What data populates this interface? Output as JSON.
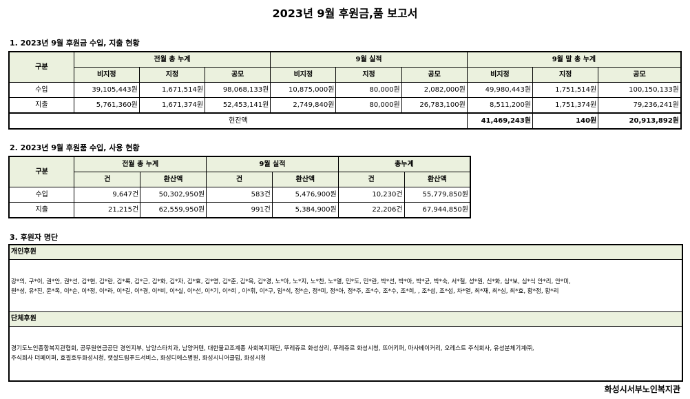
{
  "title": "2023년 9월 후원금,품 보고서",
  "section1": {
    "heading": "1. 2023년 9월 후원금 수입, 지출 현황",
    "group_label": "구분",
    "groups": [
      "전월 총 누계",
      "9월 실적",
      "9월 말 총 누계"
    ],
    "sub_headers": [
      "비지정",
      "지정",
      "공모",
      "비지정",
      "지정",
      "공모",
      "비지정",
      "지정",
      "공모"
    ],
    "rows": [
      {
        "label": "수입",
        "values": [
          "39,105,443원",
          "1,671,514원",
          "98,068,133원",
          "10,875,000원",
          "80,000원",
          "2,082,000원",
          "49,980,443원",
          "1,751,514원",
          "100,150,133원"
        ]
      },
      {
        "label": "지출",
        "values": [
          "5,761,360원",
          "1,671,374원",
          "52,453,141원",
          "2,749,840원",
          "80,000원",
          "26,783,100원",
          "8,511,200원",
          "1,751,374원",
          "79,236,241원"
        ]
      }
    ],
    "balance_label": "현잔액",
    "balance_values": [
      "41,469,243원",
      "140원",
      "20,913,892원"
    ]
  },
  "section2": {
    "heading": "2. 2023년 9월 후원품 수입, 사용 현황",
    "group_label": "구분",
    "groups": [
      "전월 총 누계",
      "9월 실적",
      "총누계"
    ],
    "sub_headers": [
      "건",
      "환산액",
      "건",
      "환산액",
      "건",
      "환산액"
    ],
    "rows": [
      {
        "label": "수입",
        "values": [
          "9,647건",
          "50,302,950원",
          "583건",
          "5,476,900원",
          "10,230건",
          "55,779,850원"
        ]
      },
      {
        "label": "지출",
        "values": [
          "21,215건",
          "62,559,950원",
          "991건",
          "5,384,900원",
          "22,206건",
          "67,944,850원"
        ]
      }
    ]
  },
  "section3": {
    "heading": "3. 후원자 명단",
    "individual_label": "개인후원",
    "individual_text_1": "강*의, 구*이, 권*안, 권*선, 김*현, 김*란, 김*록, 김*근, 김*화, 김*자, 김*효, 김*영, 김*준, 김*옥, 김*경, 노*아, 노*지, 노*찬, 노*열, 민*도, 민*란, 박*선, 박*아, 박*균, 박*숙, 서*철, 성*원, 신*화, 심*보, 심*식 안*리, 안*미,",
    "individual_text_2": "원*성, 유*진, 윤*옥, 이*순, 이*정, 이*라, 이*길, 이*경, 이*비, 이*실, 이*선, 이*기, 이*희 , 이*휘, 이*구, 임*석, 정*순, 정*미, 정*아, 정*주, 조*수, 조*수, 조*희, , 조*섭, 조*섭, 차*열, 최*재, 최*심, 최*효, 황*정, 황*리",
    "group_label": "단체후원",
    "group_text_1": "경기도노인종합복지관협회, 공무원연금공단 경인지부, 남양스타치과, 남양커텐, 대한불교조계종 사회복지재단, 뚜레쥬르 화성상리, 뚜레쥬르 화성시청, 뜨어키퍼, 마사베이커리, 오레스트 주식회사, 유성분체기계㈜,",
    "group_text_2": "주식회사 더페이퍼, 효필호두화성시청, 햇살드림푸드서비스, 화성디에스병원, 화성시니어클럽, 화성시청"
  },
  "footer": "화성시서부노인복지관",
  "colors": {
    "header_bg": "#ebf1de",
    "border": "#000000"
  }
}
